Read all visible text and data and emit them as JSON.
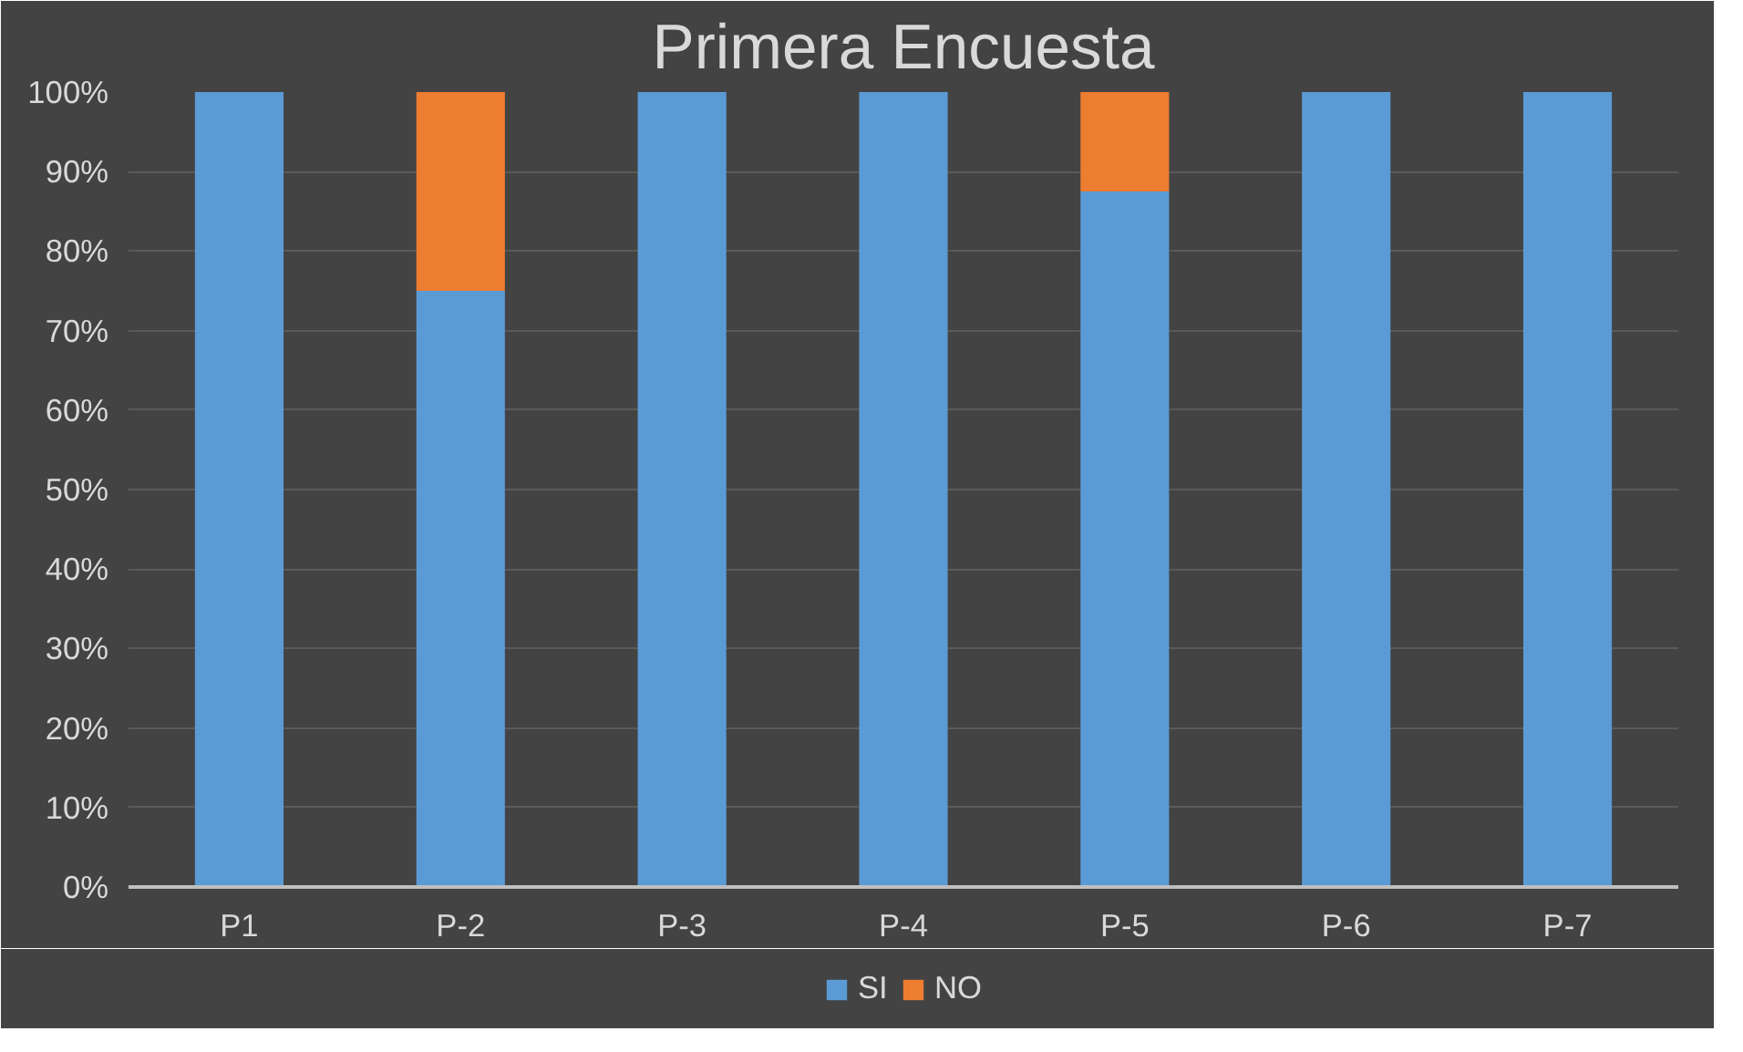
{
  "chart_data": {
    "type": "bar",
    "title": "Primera Encuesta",
    "categories": [
      "P1",
      "P-2",
      "P-3",
      "P-4",
      "P-5",
      "P-6",
      "P-7"
    ],
    "stacked": true,
    "series": [
      {
        "name": "SI",
        "color": "#5b9bd5",
        "values": [
          100,
          75,
          100,
          100,
          87.5,
          100,
          100
        ]
      },
      {
        "name": "NO",
        "color": "#ed7d31",
        "values": [
          0,
          25,
          0,
          0,
          12.5,
          0,
          0
        ]
      }
    ],
    "ylim": [
      0,
      100
    ],
    "yticks": [
      {
        "value": 0,
        "label": "0%"
      },
      {
        "value": 10,
        "label": "10%"
      },
      {
        "value": 20,
        "label": "20%"
      },
      {
        "value": 30,
        "label": "30%"
      },
      {
        "value": 40,
        "label": "40%"
      },
      {
        "value": 50,
        "label": "50%"
      },
      {
        "value": 60,
        "label": "60%"
      },
      {
        "value": 70,
        "label": "70%"
      },
      {
        "value": 80,
        "label": "80%"
      },
      {
        "value": 90,
        "label": "90%"
      },
      {
        "value": 100,
        "label": "100%"
      }
    ],
    "grid": "y",
    "legend": "bottom"
  }
}
